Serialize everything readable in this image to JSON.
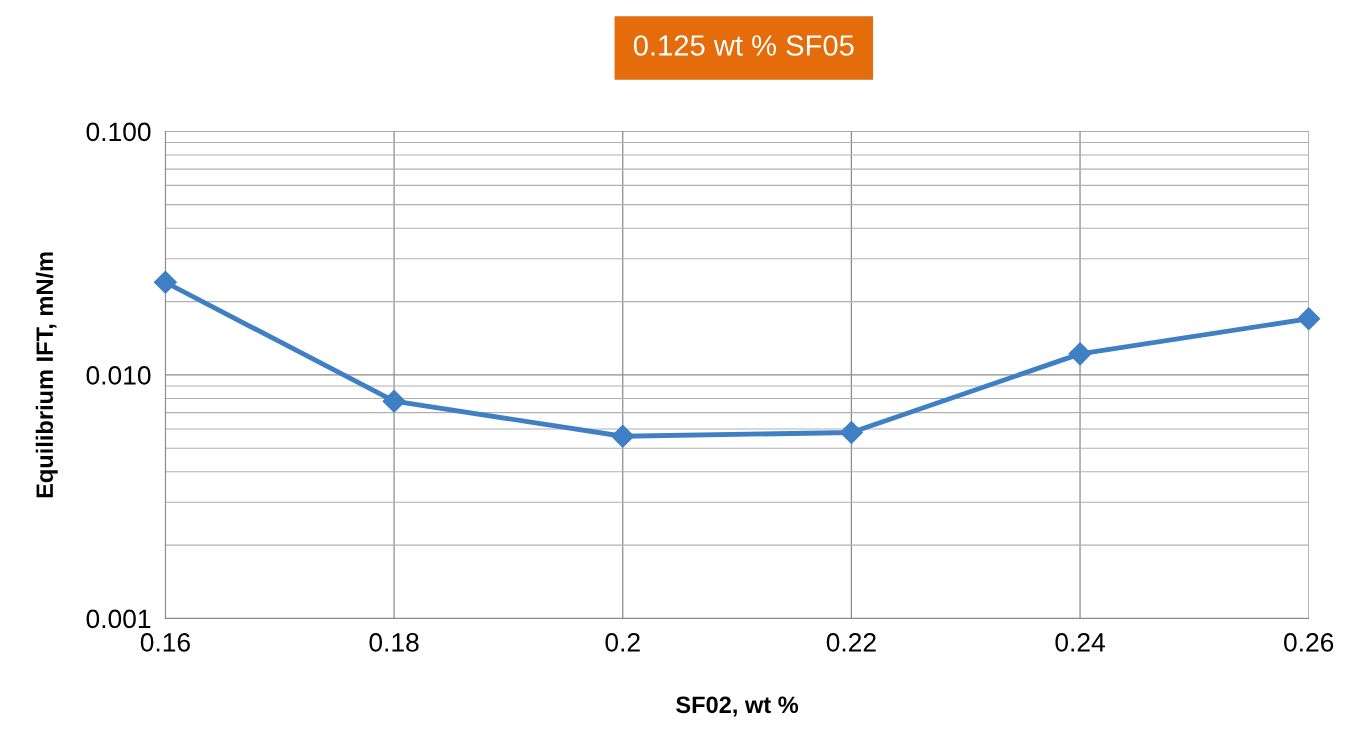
{
  "chart_data": {
    "type": "line",
    "title": "0.125 wt % SF05",
    "xlabel": "SF02, wt %",
    "ylabel": "Equilibrium IFT, mN/m",
    "x": [
      0.16,
      0.18,
      0.2,
      0.22,
      0.24,
      0.26
    ],
    "series": [
      {
        "color": "#3f7fc4",
        "values": [
          0.024,
          0.0078,
          0.0056,
          0.0058,
          0.0122,
          0.017
        ]
      }
    ],
    "log": "y",
    "xlim": [
      0.16,
      0.26
    ],
    "xticks": [
      0.16,
      0.18,
      0.2,
      0.22,
      0.24,
      0.26
    ],
    "ylim": [
      0.001,
      0.1
    ],
    "yticks": [
      {
        "value": 0.001,
        "label": "0.001"
      },
      {
        "value": 0.01,
        "label": "0.010"
      },
      {
        "value": 0.1,
        "label": "0.100"
      }
    ],
    "grid": true,
    "marker": "diamond",
    "line_style": "solid"
  }
}
